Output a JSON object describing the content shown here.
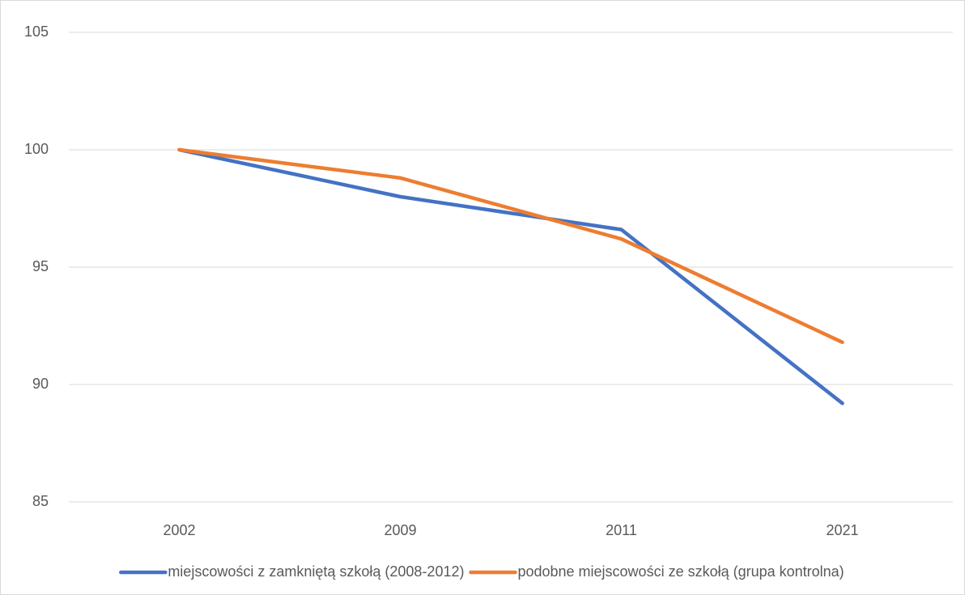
{
  "chart_data": {
    "type": "line",
    "categories": [
      "2002",
      "2009",
      "2011",
      "2021"
    ],
    "series": [
      {
        "name": "miejscowości z zamkniętą szkołą (2008-2012)",
        "color": "#4472c4",
        "values": [
          100,
          98.0,
          96.6,
          89.2
        ]
      },
      {
        "name": "podobne miejscowości ze szkołą (grupa kontrolna)",
        "color": "#ed7d31",
        "values": [
          100,
          98.8,
          96.2,
          91.8
        ]
      }
    ],
    "ylim": [
      85,
      105
    ],
    "yticks": [
      85,
      90,
      95,
      100,
      105
    ],
    "grid": true,
    "legend": "bottom"
  }
}
